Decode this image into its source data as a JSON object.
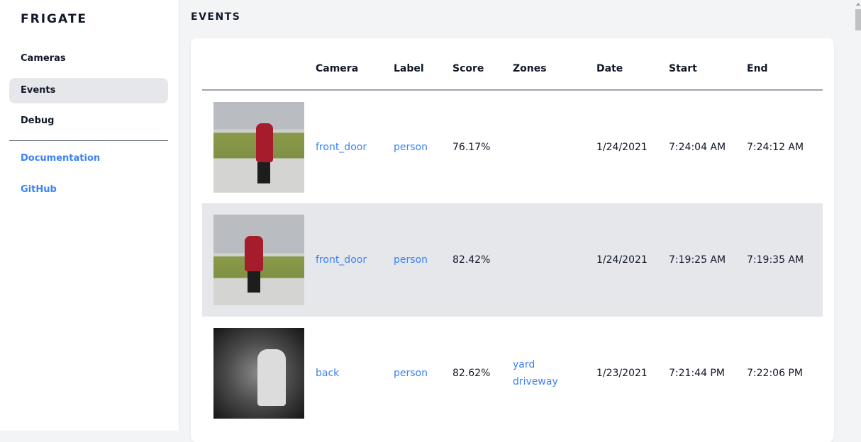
{
  "sidebar": {
    "brand": "FRIGATE",
    "items": [
      {
        "label": "Cameras"
      },
      {
        "label": "Events",
        "active": true
      },
      {
        "label": "Debug"
      }
    ],
    "links": [
      {
        "label": "Documentation"
      },
      {
        "label": "GitHub"
      }
    ]
  },
  "main": {
    "title": "EVENTS",
    "columns": [
      "",
      "Camera",
      "Label",
      "Score",
      "Zones",
      "Date",
      "Start",
      "End"
    ],
    "rows": [
      {
        "thumbnail": "person-walking-dog",
        "camera": "front_door",
        "label": "person",
        "score": "76.17%",
        "zones": [
          "",
          ""
        ],
        "date": "1/24/2021",
        "start": "7:24:04 AM",
        "end": "7:24:12 AM"
      },
      {
        "thumbnail": "person-walking-dog",
        "camera": "front_door",
        "label": "person",
        "score": "82.42%",
        "zones": [
          "",
          ""
        ],
        "date": "1/24/2021",
        "start": "7:19:25 AM",
        "end": "7:19:35 AM"
      },
      {
        "thumbnail": "person-night-ir",
        "camera": "back",
        "label": "person",
        "score": "82.62%",
        "zones": [
          "yard",
          "driveway"
        ],
        "date": "1/23/2021",
        "start": "7:21:44 PM",
        "end": "7:22:06 PM"
      }
    ]
  },
  "colors": {
    "accent": "#3b82f6",
    "active_bg": "#e5e7eb",
    "page_bg": "#f3f4f6"
  }
}
